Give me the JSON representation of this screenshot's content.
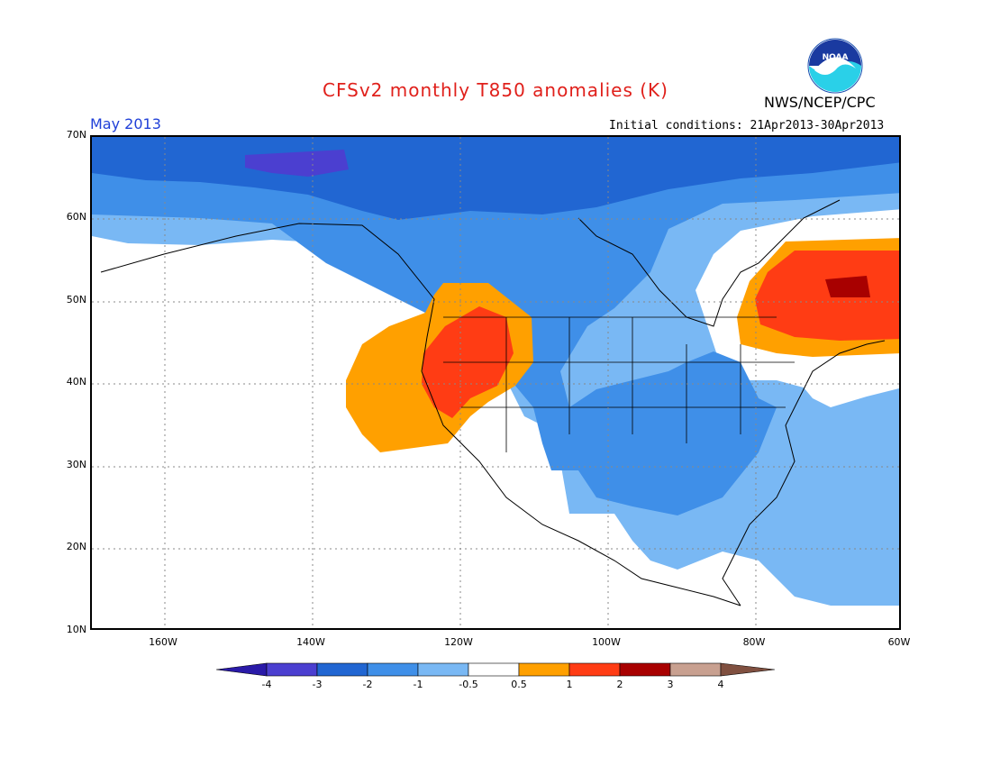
{
  "header": {
    "title": "CFSv2 monthly T850 anomalies (K)",
    "org": "NWS/NCEP/CPC",
    "month": "May 2013",
    "initial_conditions": "Initial conditions: 21Apr2013-30Apr2013",
    "logo_text": "NOAA"
  },
  "map": {
    "lat_labels": [
      "70N",
      "60N",
      "50N",
      "40N",
      "30N",
      "20N",
      "10N"
    ],
    "lon_labels": [
      "160W",
      "140W",
      "120W",
      "100W",
      "80W",
      "60W"
    ],
    "colors": {
      "below_-4": "#2a1aa8",
      "-4_-3": "#4b3fd0",
      "-3_-2": "#2166d2",
      "-2_-1": "#3f8fe8",
      "-1_-0.5": "#79b8f4",
      "neutral": "#ffffff",
      "0.5_1": "#ffa000",
      "1_2": "#ff3c14",
      "2_3": "#a80000",
      "3_4": "#c8a090",
      "above_4": "#805040"
    }
  },
  "colorbar": {
    "labels": [
      "-4",
      "-3",
      "-2",
      "-1",
      "-0.5",
      "0.5",
      "1",
      "2",
      "3",
      "4"
    ]
  }
}
